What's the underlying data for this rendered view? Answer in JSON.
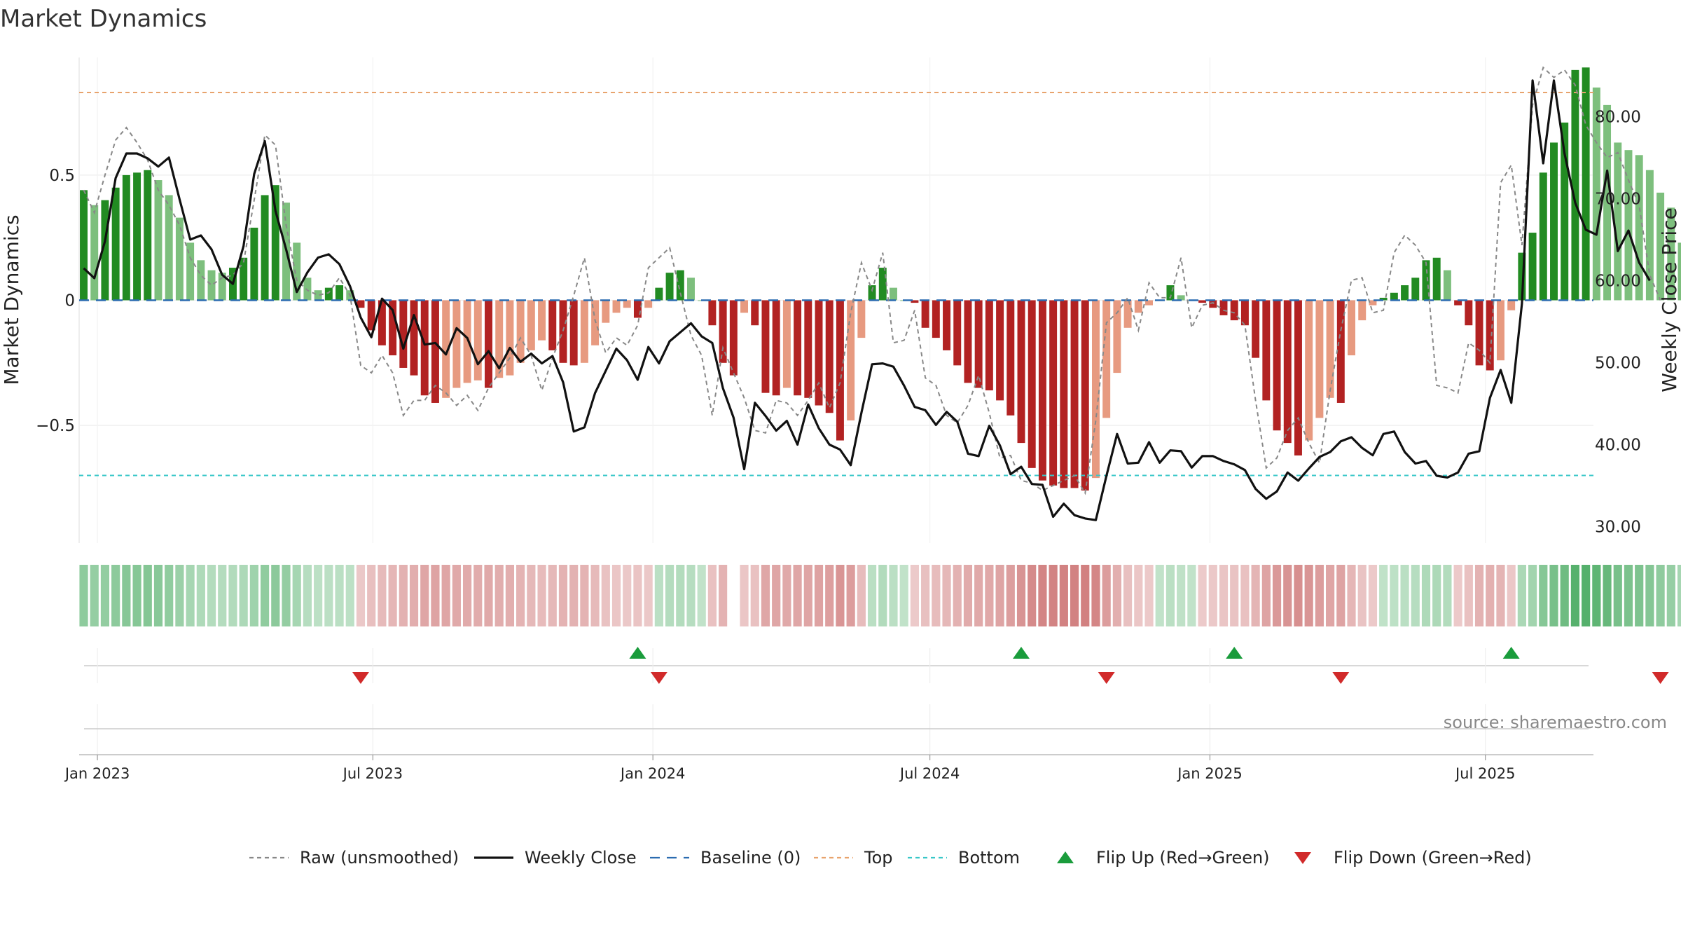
{
  "chart_data": {
    "type": "bar",
    "title": "Market Dynamics",
    "ylabel": "Market Dynamics",
    "y2label": "Weekly Close Price",
    "ylim": [
      -0.97,
      0.97
    ],
    "y2lim": [
      28.0,
      87.2
    ],
    "yticks": [
      {
        "v": 0.5,
        "label": "0.5"
      },
      {
        "v": 0.0,
        "label": "0"
      },
      {
        "v": -0.5,
        "label": "−0.5"
      }
    ],
    "y2ticks": [
      {
        "v": 80,
        "label": "80.00"
      },
      {
        "v": 70,
        "label": "70.00"
      },
      {
        "v": 60,
        "label": "60.00"
      },
      {
        "v": 50,
        "label": "50.00"
      },
      {
        "v": 40,
        "label": "40.00"
      },
      {
        "v": 30,
        "label": "30.00"
      }
    ],
    "xdomain": [
      "2022-12-20",
      "2025-09-10"
    ],
    "xticks": [
      {
        "date": "2023-01-01",
        "label": "Jan 2023"
      },
      {
        "date": "2023-07-01",
        "label": "Jul 2023"
      },
      {
        "date": "2024-01-01",
        "label": "Jan 2024"
      },
      {
        "date": "2024-07-01",
        "label": "Jul 2024"
      },
      {
        "date": "2025-01-01",
        "label": "Jan 2025"
      },
      {
        "date": "2025-07-01",
        "label": "Jul 2025"
      }
    ],
    "series_start": "2022-12-23",
    "week_step_days": 7,
    "gap_week_indices": [
      61
    ],
    "bars": [
      0.44,
      0.38,
      0.4,
      0.45,
      0.5,
      0.51,
      0.52,
      0.48,
      0.42,
      0.33,
      0.23,
      0.16,
      0.12,
      0.11,
      0.13,
      0.17,
      0.29,
      0.42,
      0.46,
      0.39,
      0.23,
      0.09,
      0.04,
      0.05,
      0.06,
      0.04,
      -0.03,
      -0.12,
      -0.18,
      -0.22,
      -0.27,
      -0.3,
      -0.38,
      -0.41,
      -0.39,
      -0.35,
      -0.33,
      -0.32,
      -0.35,
      -0.31,
      -0.3,
      -0.25,
      -0.2,
      -0.16,
      -0.2,
      -0.25,
      -0.26,
      -0.25,
      -0.18,
      -0.09,
      -0.05,
      -0.03,
      -0.07,
      -0.03,
      0.05,
      0.11,
      0.12,
      0.09,
      0.0,
      -0.1,
      -0.25,
      -0.3,
      -0.05,
      -0.1,
      -0.37,
      -0.38,
      -0.35,
      -0.38,
      -0.39,
      -0.42,
      -0.45,
      -0.56,
      -0.48,
      -0.15,
      0.06,
      0.13,
      0.05,
      0.0,
      -0.01,
      -0.11,
      -0.15,
      -0.2,
      -0.26,
      -0.33,
      -0.35,
      -0.36,
      -0.4,
      -0.46,
      -0.57,
      -0.67,
      -0.72,
      -0.74,
      -0.75,
      -0.75,
      -0.76,
      -0.71,
      -0.47,
      -0.29,
      -0.11,
      -0.05,
      -0.02,
      0.0,
      0.06,
      0.02,
      0.0,
      -0.01,
      -0.03,
      -0.06,
      -0.08,
      -0.1,
      -0.23,
      -0.4,
      -0.52,
      -0.57,
      -0.62,
      -0.56,
      -0.47,
      -0.39,
      -0.41,
      -0.22,
      -0.08,
      -0.02,
      0.01,
      0.03,
      0.06,
      0.09,
      0.16,
      0.17,
      0.12,
      -0.02,
      -0.1,
      -0.26,
      -0.28,
      -0.24,
      -0.04,
      0.19,
      0.27,
      0.51,
      0.63,
      0.71,
      0.92,
      0.93,
      0.85,
      0.78,
      0.63,
      0.6,
      0.58,
      0.52,
      0.43,
      0.37,
      0.23
    ],
    "raw": [
      0.44,
      0.35,
      0.5,
      0.64,
      0.69,
      0.63,
      0.56,
      0.44,
      0.38,
      0.3,
      0.17,
      0.1,
      0.06,
      0.09,
      0.1,
      0.15,
      0.4,
      0.66,
      0.62,
      0.3,
      0.08,
      0.04,
      0.02,
      0.03,
      0.09,
      0.02,
      -0.26,
      -0.29,
      -0.22,
      -0.29,
      -0.46,
      -0.4,
      -0.4,
      -0.34,
      -0.37,
      -0.42,
      -0.38,
      -0.44,
      -0.35,
      -0.29,
      -0.23,
      -0.15,
      -0.22,
      -0.36,
      -0.23,
      -0.12,
      0.02,
      0.17,
      -0.08,
      -0.21,
      -0.15,
      -0.18,
      -0.1,
      0.13,
      0.17,
      0.21,
      0.03,
      -0.14,
      -0.22,
      -0.46,
      -0.19,
      -0.29,
      -0.39,
      -0.52,
      -0.53,
      -0.4,
      -0.41,
      -0.46,
      -0.4,
      -0.33,
      -0.43,
      -0.33,
      -0.05,
      0.15,
      0.04,
      0.19,
      -0.17,
      -0.16,
      -0.04,
      -0.31,
      -0.34,
      -0.46,
      -0.49,
      -0.42,
      -0.3,
      -0.45,
      -0.63,
      -0.62,
      -0.72,
      -0.73,
      -0.76,
      -0.74,
      -0.72,
      -0.7,
      -0.77,
      -0.48,
      -0.09,
      -0.05,
      0.01,
      -0.12,
      0.07,
      0.01,
      0.01,
      0.17,
      -0.11,
      -0.02,
      -0.01,
      -0.04,
      -0.05,
      -0.1,
      -0.4,
      -0.67,
      -0.63,
      -0.52,
      -0.47,
      -0.57,
      -0.65,
      -0.36,
      -0.12,
      0.08,
      0.09,
      -0.05,
      -0.04,
      0.19,
      0.26,
      0.22,
      0.15,
      -0.34,
      -0.35,
      -0.37,
      -0.17,
      -0.2,
      -0.25,
      0.47,
      0.54,
      0.22,
      0.78,
      0.93,
      0.89,
      0.92,
      0.86,
      0.7,
      0.63,
      0.57,
      0.59,
      0.48,
      0.38,
      0.1,
      0.0
    ],
    "close": [
      61.5,
      60.3,
      64.8,
      72.5,
      75.5,
      75.5,
      74.9,
      73.9,
      75.0,
      69.9,
      65.0,
      65.5,
      63.8,
      60.7,
      59.6,
      64.2,
      73.0,
      77.0,
      68.5,
      63.8,
      58.6,
      61.0,
      62.8,
      63.2,
      62.0,
      59.3,
      55.5,
      53.1,
      57.8,
      56.4,
      51.7,
      55.8,
      52.2,
      52.4,
      51.0,
      54.2,
      53.0,
      49.8,
      51.4,
      49.3,
      51.8,
      50.1,
      51.1,
      49.9,
      50.8,
      47.6,
      41.6,
      42.1,
      46.3,
      49.0,
      51.7,
      50.3,
      47.9,
      51.9,
      49.9,
      52.6,
      53.7,
      54.8,
      53.2,
      52.4,
      46.9,
      43.3,
      37.0,
      45.1,
      43.5,
      41.7,
      42.9,
      40.0,
      44.9,
      42.0,
      40.0,
      39.4,
      37.5,
      43.9,
      49.8,
      49.9,
      49.5,
      47.2,
      44.6,
      44.2,
      42.4,
      44.0,
      42.8,
      38.9,
      38.6,
      42.3,
      39.9,
      36.4,
      37.3,
      35.2,
      35.1,
      31.2,
      32.8,
      31.4,
      31.0,
      30.8,
      36.2,
      41.3,
      37.7,
      37.8,
      40.3,
      37.8,
      39.3,
      39.2,
      37.2,
      38.6,
      38.6,
      38.0,
      37.6,
      36.9,
      34.6,
      33.4,
      34.3,
      36.6,
      35.6,
      37.1,
      38.5,
      39.1,
      40.4,
      40.9,
      39.6,
      38.7,
      41.3,
      41.6,
      39.1,
      37.7,
      38.0,
      36.2,
      36.0,
      36.6,
      38.9,
      39.2,
      45.7,
      49.1,
      45.1,
      57.2,
      84.4,
      74.3,
      84.4,
      75.5,
      69.5,
      66.2,
      65.6,
      73.4,
      63.6,
      66.1,
      62.2,
      60.0
    ],
    "top": 0.83,
    "bottom": -0.7,
    "flip_up_weeks": [
      26,
      44,
      54,
      67,
      80
    ],
    "flip_down_weeks": [
      13,
      27,
      48,
      59,
      74
    ],
    "source": "source: sharemaestro.com",
    "legend": [
      {
        "label": "Raw (unsmoothed)",
        "kind": "line",
        "color": "#888888",
        "dash": "6,5"
      },
      {
        "label": "Weekly Close",
        "kind": "line",
        "color": "#111111",
        "dash": ""
      },
      {
        "label": "Baseline (0)",
        "kind": "line",
        "color": "#2b6cb0",
        "dash": "14,10"
      },
      {
        "label": "Top",
        "kind": "line",
        "color": "#e8a36d",
        "dash": "6,5"
      },
      {
        "label": "Bottom",
        "kind": "line",
        "color": "#38c7c8",
        "dash": "6,5"
      },
      {
        "label": "Flip Up (Red→Green)",
        "kind": "tri-up",
        "color": "#1a9c3c",
        "dash": ""
      },
      {
        "label": "Flip Down (Green→Red)",
        "kind": "tri-down",
        "color": "#d12a2a",
        "dash": ""
      }
    ],
    "colors": {
      "pos_strong": "#228b22",
      "pos_weak": "#7dbf7d",
      "neg_strong": "#b22222",
      "neg_weak": "#e79a80",
      "raw": "#888888",
      "close": "#111111",
      "baseline": "#2b6cb0",
      "top": "#e8a36d",
      "bottom": "#38c7c8",
      "flip_up": "#1a9c3c",
      "flip_down": "#d12a2a"
    }
  }
}
